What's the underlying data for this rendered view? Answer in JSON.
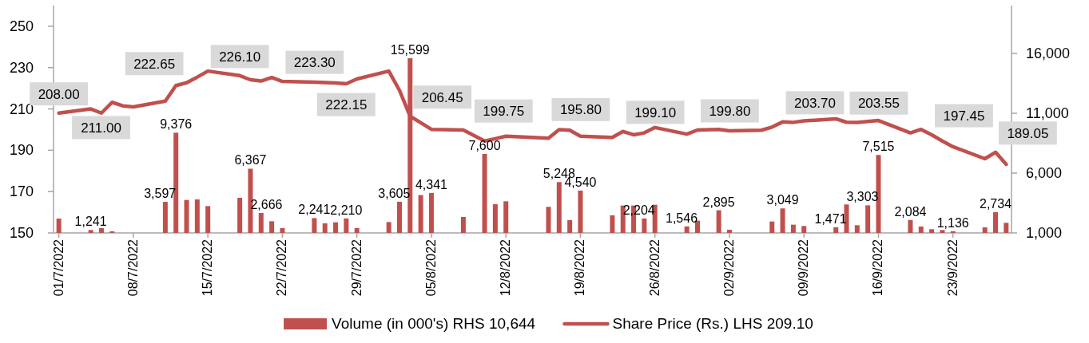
{
  "chart_data": {
    "type": "bar",
    "x": [
      "2022-07-01",
      "2022-07-04",
      "2022-07-05",
      "2022-07-06",
      "2022-07-07",
      "2022-07-08",
      "2022-07-11",
      "2022-07-12",
      "2022-07-13",
      "2022-07-14",
      "2022-07-15",
      "2022-07-18",
      "2022-07-19",
      "2022-07-20",
      "2022-07-21",
      "2022-07-22",
      "2022-07-25",
      "2022-07-26",
      "2022-07-27",
      "2022-07-28",
      "2022-07-29",
      "2022-08-01",
      "2022-08-02",
      "2022-08-03",
      "2022-08-04",
      "2022-08-05",
      "2022-08-08",
      "2022-08-10",
      "2022-08-11",
      "2022-08-12",
      "2022-08-16",
      "2022-08-17",
      "2022-08-18",
      "2022-08-19",
      "2022-08-22",
      "2022-08-23",
      "2022-08-24",
      "2022-08-25",
      "2022-08-26",
      "2022-08-29",
      "2022-08-30",
      "2022-09-01",
      "2022-09-02",
      "2022-09-05",
      "2022-09-06",
      "2022-09-07",
      "2022-09-08",
      "2022-09-09",
      "2022-09-12",
      "2022-09-13",
      "2022-09-14",
      "2022-09-15",
      "2022-09-16",
      "2022-09-19",
      "2022-09-20",
      "2022-09-21",
      "2022-09-22",
      "2022-09-23",
      "2022-09-26",
      "2022-09-27",
      "2022-09-28"
    ],
    "series": [
      {
        "name": "Volume (in 000's) RHS  10,644",
        "axis": "y2",
        "color": "#c0504d",
        "values": [
          2200,
          1241,
          1400,
          1130,
          1000,
          1000,
          3597,
          9376,
          3756,
          3800,
          3244,
          3933,
          6367,
          2666,
          1978,
          1400,
          2241,
          1800,
          1889,
          2210,
          1400,
          1911,
          3605,
          15599,
          4163,
          4341,
          2333,
          7600,
          3400,
          3644,
          3178,
          5248,
          2067,
          4540,
          2467,
          3289,
          3289,
          2204,
          3356,
          1546,
          2022,
          2895,
          1267,
          null,
          1956,
          3049,
          1689,
          1578,
          1471,
          3380,
          1644,
          3303,
          7515,
          2084,
          1533,
          1311,
          1244,
          1136,
          1467,
          2734,
          1844
        ],
        "value_labels": [
          null,
          "1,241",
          null,
          null,
          null,
          null,
          "3,597",
          "9,376",
          null,
          null,
          null,
          null,
          "6,367",
          "2,666",
          null,
          null,
          "2,241",
          null,
          null,
          "2,210",
          null,
          null,
          "3,605",
          "15,599",
          null,
          "4,341",
          null,
          "7,600",
          null,
          null,
          null,
          "5,248",
          null,
          "4,540",
          null,
          null,
          null,
          "2,204",
          null,
          "1,546",
          null,
          "2,895",
          null,
          null,
          null,
          "3,049",
          null,
          null,
          "1,471",
          null,
          null,
          "3,303",
          "7,515",
          "2,084",
          null,
          null,
          null,
          "1,136",
          null,
          "2,734",
          null
        ]
      },
      {
        "name": "Share Price (Rs.) LHS  209.10",
        "type": "line",
        "axis": "y",
        "color": "#c0504d",
        "values": [
          208.0,
          210.0,
          208.0,
          213.2,
          211.5,
          211.0,
          213.8,
          221.3,
          222.65,
          225.4,
          228.3,
          226.1,
          224.1,
          223.5,
          225.2,
          223.3,
          222.9,
          222.8,
          222.6,
          222.15,
          224.5,
          228.3,
          219.0,
          206.45,
          203.3,
          200.1,
          199.75,
          194.5,
          195.6,
          196.8,
          195.8,
          200.0,
          199.7,
          196.8,
          196.2,
          199.1,
          197.5,
          198.4,
          201.0,
          197.8,
          199.8,
          200.1,
          199.4,
          199.7,
          201.2,
          203.7,
          203.5,
          204.2,
          205.2,
          203.55,
          203.5,
          203.9,
          204.4,
          198.4,
          200.1,
          197.45,
          194.5,
          191.7,
          185.9,
          189.05,
          183.2
        ]
      }
    ],
    "xlim": [
      "2022-06-30T12:00",
      "2022-09-28T12:00"
    ],
    "xticks": [
      {
        "value": "2022-07-01",
        "label": "01/7/2022"
      },
      {
        "value": "2022-07-08",
        "label": "08/7/2022"
      },
      {
        "value": "2022-07-15",
        "label": "15/7/2022"
      },
      {
        "value": "2022-07-22",
        "label": "22/7/2022"
      },
      {
        "value": "2022-07-29",
        "label": "29/7/2022"
      },
      {
        "value": "2022-08-05",
        "label": "05/8/2022"
      },
      {
        "value": "2022-08-12",
        "label": "12/8/2022"
      },
      {
        "value": "2022-08-19",
        "label": "19/8/2022"
      },
      {
        "value": "2022-08-26",
        "label": "26/8/2022"
      },
      {
        "value": "2022-09-02",
        "label": "02/9/2022"
      },
      {
        "value": "2022-09-09",
        "label": "09/9/2022"
      },
      {
        "value": "2022-09-16",
        "label": "16/9/2022"
      },
      {
        "value": "2022-09-23",
        "label": "23/9/2022"
      }
    ],
    "ylim": [
      150,
      260
    ],
    "yticks": [
      150,
      170,
      190,
      210,
      230,
      250
    ],
    "y2lim": [
      1000,
      20000
    ],
    "y2ticks": [
      {
        "value": 1000,
        "label": "1,000"
      },
      {
        "value": 6000,
        "label": "6,000"
      },
      {
        "value": 11000,
        "label": "11,000"
      },
      {
        "value": 16000,
        "label": "16,000"
      }
    ],
    "annotations": [
      {
        "text": "208.00",
        "x": "2022-07-01",
        "y": 208.0
      },
      {
        "text": "211.00",
        "x": "2022-07-08",
        "y": 211.0
      },
      {
        "text": "222.65",
        "x": "2022-07-13",
        "y": 222.65
      },
      {
        "text": "226.10",
        "x": "2022-07-18",
        "y": 226.1
      },
      {
        "text": "223.30",
        "x": "2022-07-22",
        "y": 223.3
      },
      {
        "text": "222.15",
        "x": "2022-07-28",
        "y": 222.15
      },
      {
        "text": "206.45",
        "x": "2022-08-03",
        "y": 206.45
      },
      {
        "text": "199.75",
        "x": "2022-08-08",
        "y": 199.75
      },
      {
        "text": "195.80",
        "x": "2022-08-16",
        "y": 195.8
      },
      {
        "text": "199.10",
        "x": "2022-08-23",
        "y": 199.1
      },
      {
        "text": "199.80",
        "x": "2022-08-30",
        "y": 199.8
      },
      {
        "text": "203.70",
        "x": "2022-09-07",
        "y": 203.7
      },
      {
        "text": "203.55",
        "x": "2022-09-13",
        "y": 203.55
      },
      {
        "text": "197.45",
        "x": "2022-09-21",
        "y": 197.45
      },
      {
        "text": "189.05",
        "x": "2022-09-27",
        "y": 189.05
      }
    ],
    "grid": false,
    "legend": "bottom"
  }
}
